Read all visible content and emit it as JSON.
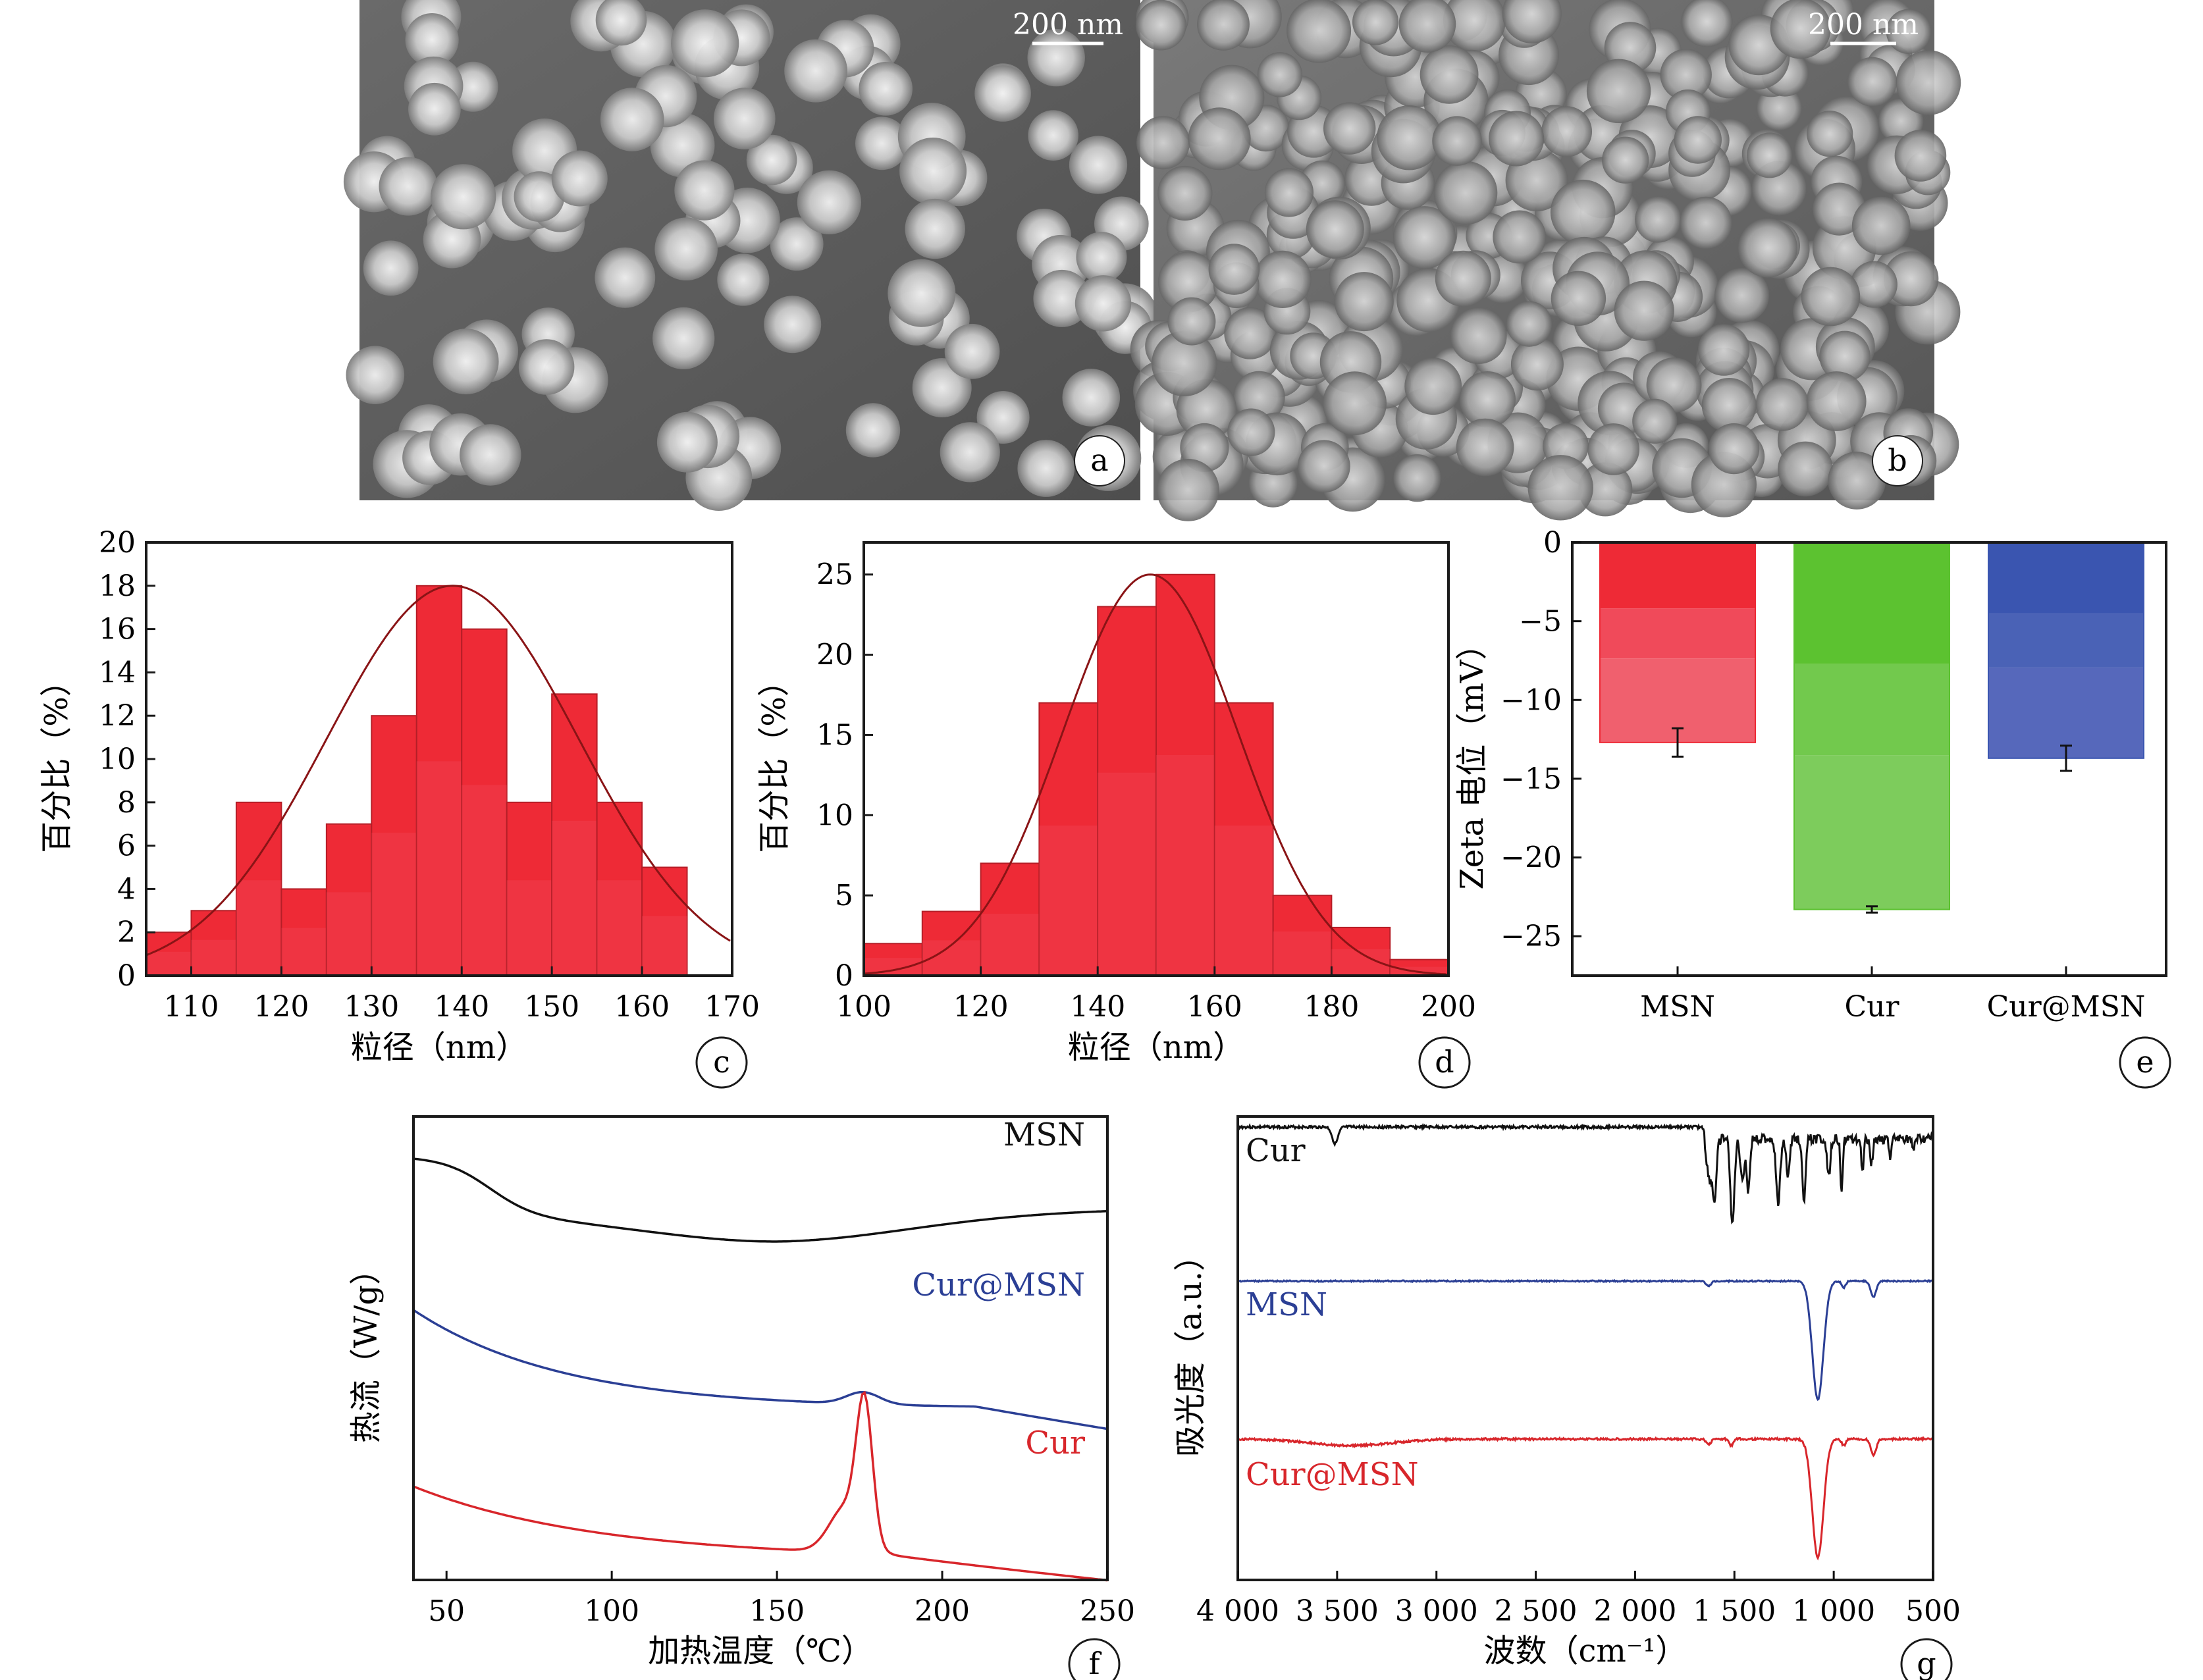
{
  "sem": [
    {
      "id": "a",
      "scale_bar": "200 nm",
      "label": "a"
    },
    {
      "id": "b",
      "scale_bar": "200 nm",
      "label": "b"
    }
  ],
  "chart_data": [
    {
      "id": "c",
      "type": "bar",
      "label": "c",
      "xlabel": "粒径（nm）",
      "ylabel": "百分比（%）",
      "xlim": [
        105,
        170
      ],
      "ylim": [
        0,
        20
      ],
      "xticks": [
        110,
        120,
        130,
        140,
        150,
        160,
        170
      ],
      "yticks": [
        0,
        2,
        4,
        6,
        8,
        10,
        12,
        14,
        16,
        18,
        20
      ],
      "bin_width": 5,
      "bin_starts": [
        105,
        110,
        115,
        120,
        125,
        130,
        135,
        140,
        145,
        150,
        155,
        160
      ],
      "values": [
        2,
        3,
        8,
        4,
        7,
        12,
        18,
        16,
        8,
        13,
        8,
        5
      ],
      "fit": {
        "type": "gaussian",
        "mean": 139,
        "peak": 18,
        "sigma": 14
      }
    },
    {
      "id": "d",
      "type": "bar",
      "label": "d",
      "xlabel": "粒径（nm）",
      "ylabel": "百分比（%）",
      "xlim": [
        100,
        200
      ],
      "ylim": [
        0,
        27
      ],
      "xticks": [
        100,
        120,
        140,
        160,
        180,
        200
      ],
      "yticks": [
        0,
        5,
        10,
        15,
        20,
        25
      ],
      "bin_width": 10,
      "bin_starts": [
        100,
        110,
        120,
        130,
        140,
        150,
        160,
        170,
        180,
        190
      ],
      "values": [
        2,
        4,
        7,
        17,
        23,
        25,
        17,
        5,
        3,
        1
      ],
      "fit": {
        "type": "gaussian",
        "mean": 149,
        "peak": 25,
        "sigma": 15
      }
    },
    {
      "id": "e",
      "type": "bar",
      "label": "e",
      "ylabel": "Zeta 电位（mV）",
      "ylim": [
        -27.5,
        0
      ],
      "yticks": [
        0,
        -5,
        -10,
        -15,
        -20,
        -25
      ],
      "categories": [
        "MSN",
        "Cur",
        "Cur@MSN"
      ],
      "values": [
        -12.7,
        -23.3,
        -13.7
      ],
      "errors": [
        0.9,
        0.2,
        0.8
      ],
      "colors": [
        "#ee2a36",
        "#5cc230",
        "#3a55b0"
      ]
    },
    {
      "id": "f",
      "type": "line",
      "label": "f",
      "xlabel": "加热温度（℃）",
      "ylabel": "热流（W/g）",
      "xlim": [
        40,
        250
      ],
      "xticks": [
        50,
        100,
        150,
        200,
        250
      ],
      "series": [
        {
          "name": "MSN",
          "color": "#111111"
        },
        {
          "name": "Cur@MSN",
          "color": "#2b3f95"
        },
        {
          "name": "Cur",
          "color": "#d8262b"
        }
      ]
    },
    {
      "id": "g",
      "type": "line",
      "label": "g",
      "xlabel": "波数（cm⁻¹）",
      "ylabel": "吸光度（a.u.）",
      "xlim": [
        4000,
        500
      ],
      "xticks": [
        "4 000",
        "3 500",
        "3 000",
        "2 500",
        "2 000",
        "1 500",
        "1 000",
        "500"
      ],
      "series": [
        {
          "name": "Cur",
          "color": "#111111"
        },
        {
          "name": "MSN",
          "color": "#2b3f95"
        },
        {
          "name": "Cur@MSN",
          "color": "#d8262b"
        }
      ]
    }
  ]
}
